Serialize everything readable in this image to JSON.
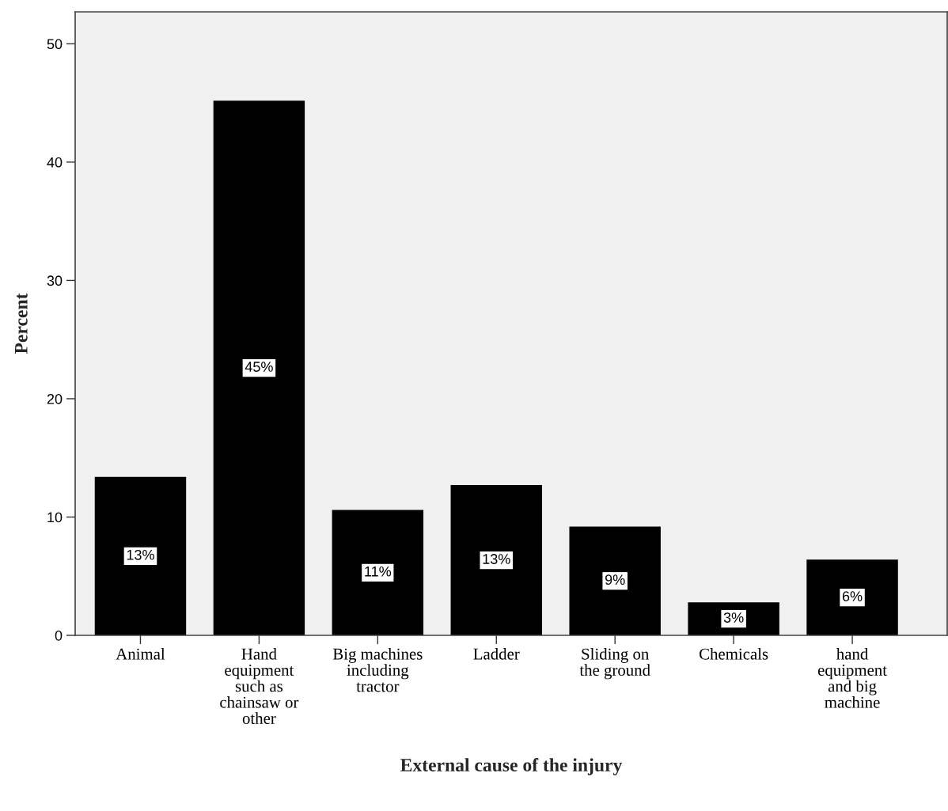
{
  "chart_data": {
    "type": "bar",
    "xlabel": "External cause of the injury",
    "ylabel": "Percent",
    "categories": [
      "Animal",
      "Hand\nequipment\nsuch as\nchainsaw or\nother",
      "Big machines\nincluding\ntractor",
      "Ladder",
      "Sliding on\nthe ground",
      "Chemicals",
      "hand\nequipment\nand big\nmachine"
    ],
    "values": [
      13.4,
      45.2,
      10.6,
      12.7,
      9.2,
      2.8,
      6.4
    ],
    "value_labels": [
      "13%",
      "45%",
      "11%",
      "13%",
      "9%",
      "3%",
      "6%"
    ],
    "color": "#000000",
    "ylim": [
      0,
      52.7
    ],
    "yticks": [
      0,
      10,
      20,
      30,
      40,
      50
    ],
    "grid": false,
    "legend": false
  }
}
